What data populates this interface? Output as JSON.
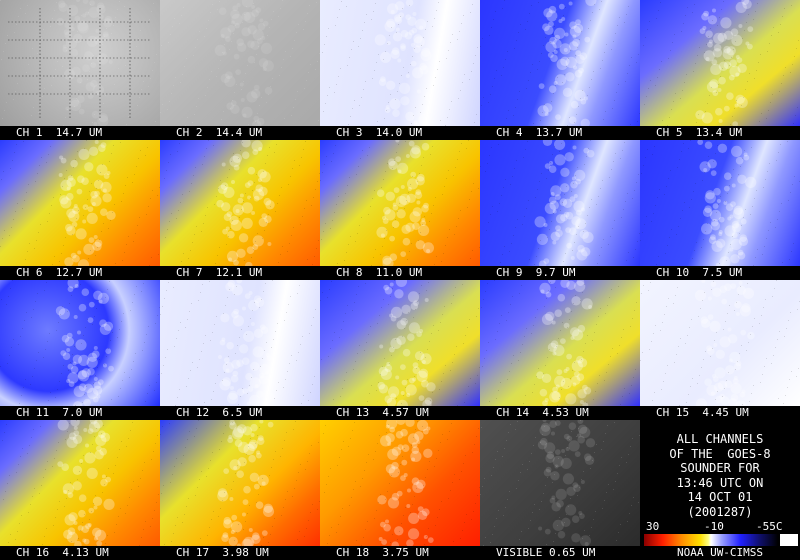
{
  "channels": [
    {
      "label": "CH 1  14.7 UM",
      "style": "gray-map"
    },
    {
      "label": "CH 2  14.4 UM",
      "style": "gray"
    },
    {
      "label": "CH 3  14.0 UM",
      "style": "pale"
    },
    {
      "label": "CH 4  13.7 UM",
      "style": "blue"
    },
    {
      "label": "CH 5  13.4 UM",
      "style": "blueyellow"
    },
    {
      "label": "CH 6  12.7 UM",
      "style": "warm"
    },
    {
      "label": "CH 7  12.1 UM",
      "style": "warm"
    },
    {
      "label": "CH 8  11.0 UM",
      "style": "warm"
    },
    {
      "label": "CH 9  9.7 UM",
      "style": "blue"
    },
    {
      "label": "CH 10  7.5 UM",
      "style": "blue"
    },
    {
      "label": "CH 11  7.0 UM",
      "style": "bluewave"
    },
    {
      "label": "CH 12  6.5 UM",
      "style": "pale"
    },
    {
      "label": "CH 13  4.57 UM",
      "style": "blueyellow"
    },
    {
      "label": "CH 14  4.53 UM",
      "style": "blueyellow"
    },
    {
      "label": "CH 15  4.45 UM",
      "style": "whitenoise"
    },
    {
      "label": "CH 16  4.13 UM",
      "style": "warm"
    },
    {
      "label": "CH 17  3.98 UM",
      "style": "hot"
    },
    {
      "label": "CH 18  3.75 UM",
      "style": "hotter"
    },
    {
      "label": "VISIBLE 0.65 UM",
      "style": "visible"
    }
  ],
  "info": {
    "lines": [
      "ALL CHANNELS",
      "OF THE  GOES-8",
      "SOUNDER FOR",
      "13:46 UTC ON",
      "14 OCT 01",
      "(2001287)"
    ]
  },
  "scale": {
    "labels": [
      "30",
      "-10",
      "-55C"
    ]
  },
  "credit": "NOAA UW-CIMSS"
}
